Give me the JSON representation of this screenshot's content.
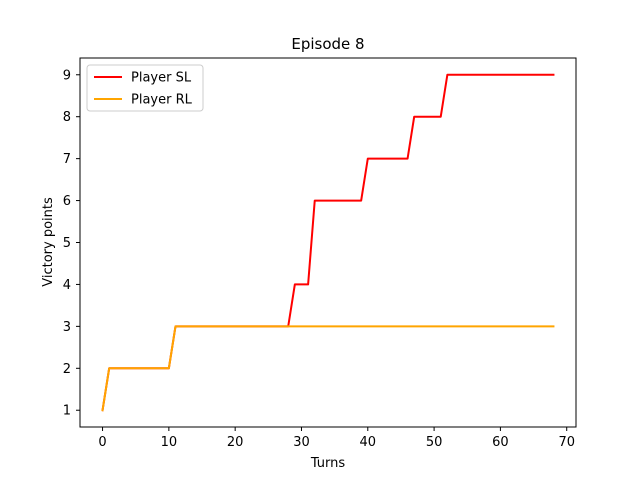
{
  "chart_data": {
    "type": "line",
    "title": "Episode 8",
    "xlabel": "Turns",
    "ylabel": "Victory points",
    "xlim": [
      -3.4,
      71.4
    ],
    "ylim": [
      0.6,
      9.4
    ],
    "xticks": [
      0,
      10,
      20,
      30,
      40,
      50,
      60,
      70
    ],
    "yticks": [
      1,
      2,
      3,
      4,
      5,
      6,
      7,
      8,
      9
    ],
    "grid": false,
    "legend_position": "top-left",
    "series": [
      {
        "name": "Player SL",
        "color": "#ff0000",
        "points": [
          [
            0,
            1
          ],
          [
            1,
            2
          ],
          [
            10,
            2
          ],
          [
            11,
            3
          ],
          [
            28,
            3
          ],
          [
            29,
            4
          ],
          [
            31,
            4
          ],
          [
            32,
            6
          ],
          [
            39,
            6
          ],
          [
            40,
            7
          ],
          [
            46,
            7
          ],
          [
            47,
            8
          ],
          [
            51,
            8
          ],
          [
            52,
            9
          ],
          [
            68,
            9
          ]
        ]
      },
      {
        "name": "Player RL",
        "color": "#ffa500",
        "points": [
          [
            0,
            1
          ],
          [
            1,
            2
          ],
          [
            10,
            2
          ],
          [
            11,
            3
          ],
          [
            68,
            3
          ]
        ]
      }
    ]
  }
}
